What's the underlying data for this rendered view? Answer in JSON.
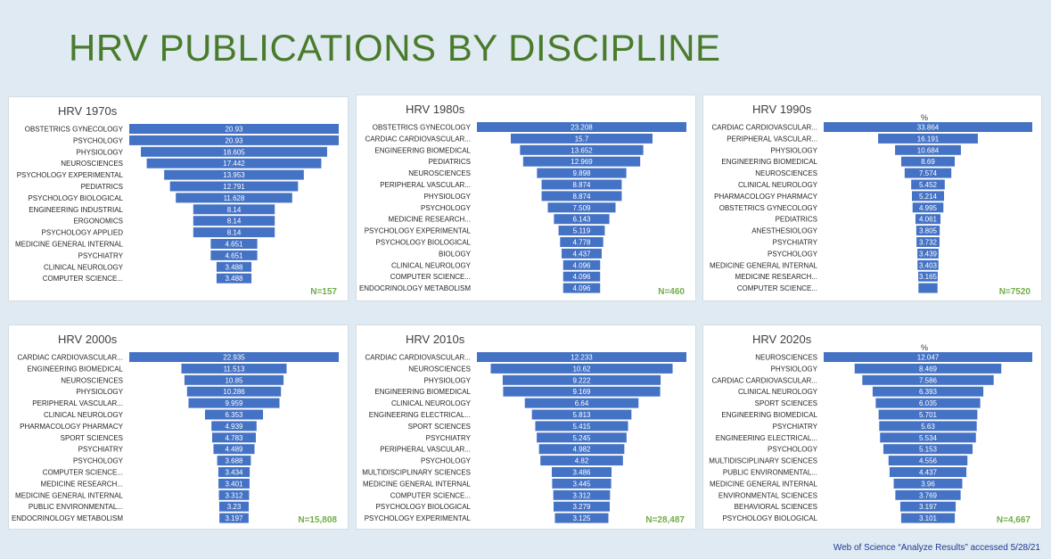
{
  "page": {
    "title": "HRV PUBLICATIONS BY DISCIPLINE",
    "source": "Web of Science “Analyze Results” accessed 5/28/21"
  },
  "colors": {
    "bar": "#4472c4",
    "title": "#4a7b2c",
    "n_label": "#70ad47",
    "background": "#dfeaf2"
  },
  "chart_data": [
    {
      "type": "bar",
      "orientation": "horizontal-funnel",
      "title": "HRV 1970s",
      "unit": "",
      "n_label": "N=157",
      "categories": [
        "OBSTETRICS GYNECOLOGY",
        "PSYCHOLOGY",
        "PHYSIOLOGY",
        "NEUROSCIENCES",
        "PSYCHOLOGY EXPERIMENTAL",
        "PEDIATRICS",
        "PSYCHOLOGY BIOLOGICAL",
        "ENGINEERING INDUSTRIAL",
        "ERGONOMICS",
        "PSYCHOLOGY APPLIED",
        "MEDICINE GENERAL INTERNAL",
        "PSYCHIATRY",
        "CLINICAL NEUROLOGY",
        "COMPUTER SCIENCE..."
      ],
      "values": [
        20.93,
        20.93,
        18.605,
        17.442,
        13.953,
        12.791,
        11.628,
        8.14,
        8.14,
        8.14,
        4.651,
        4.651,
        3.488,
        3.488
      ],
      "value_labels": [
        "20.93",
        "20.93",
        "18.605",
        "17.442",
        "13.953",
        "12.791",
        "11.628",
        "8.14",
        "8.14",
        "8.14",
        "4.651",
        "4.651",
        "3.488",
        "3.488"
      ]
    },
    {
      "type": "bar",
      "orientation": "horizontal-funnel",
      "title": "HRV 1980s",
      "unit": "",
      "n_label": "N=460",
      "categories": [
        "OBSTETRICS GYNECOLOGY",
        "CARDIAC CARDIOVASCULAR...",
        "ENGINEERING BIOMEDICAL",
        "PEDIATRICS",
        "NEUROSCIENCES",
        "PERIPHERAL VASCULAR...",
        "PHYSIOLOGY",
        "PSYCHOLOGY",
        "MEDICINE RESEARCH...",
        "PSYCHOLOGY EXPERIMENTAL",
        "PSYCHOLOGY BIOLOGICAL",
        "BIOLOGY",
        "CLINICAL NEUROLOGY",
        "COMPUTER SCIENCE...",
        "ENDOCRINOLOGY METABOLISM"
      ],
      "values": [
        23.208,
        15.7,
        13.652,
        12.969,
        9.898,
        8.874,
        8.874,
        7.509,
        6.143,
        5.119,
        4.778,
        4.437,
        4.096,
        4.096,
        4.096
      ],
      "value_labels": [
        "23.208",
        "15.7",
        "13.652",
        "12.969",
        "9.898",
        "8.874",
        "8.874",
        "7.509",
        "6.143",
        "5.119",
        "4.778",
        "4.437",
        "4.096",
        "4.096",
        "4.096"
      ]
    },
    {
      "type": "bar",
      "orientation": "horizontal-funnel",
      "title": "HRV 1990s",
      "unit": "%",
      "n_label": "N=7520",
      "categories": [
        "CARDIAC CARDIOVASCULAR...",
        "PERIPHERAL VASCULAR...",
        "PHYSIOLOGY",
        "ENGINEERING BIOMEDICAL",
        "NEUROSCIENCES",
        "CLINICAL NEUROLOGY",
        "PHARMACOLOGY PHARMACY",
        "OBSTETRICS GYNECOLOGY",
        "PEDIATRICS",
        "ANESTHESIOLOGY",
        "PSYCHIATRY",
        "PSYCHOLOGY",
        "MEDICINE GENERAL INTERNAL",
        "MEDICINE RESEARCH...",
        "COMPUTER SCIENCE..."
      ],
      "values": [
        33.864,
        16.191,
        10.684,
        8.69,
        7.574,
        5.452,
        5.214,
        4.995,
        4.061,
        3.805,
        3.732,
        3.439,
        3.403,
        3.165,
        3.1
      ],
      "value_labels": [
        "33.864",
        "16.191",
        "10.684",
        "8.69",
        "7.574",
        "5.452",
        "5.214",
        "4.995",
        "4.061",
        "3.805",
        "3.732",
        "3.439",
        "3.403",
        "3.165",
        ""
      ]
    },
    {
      "type": "bar",
      "orientation": "horizontal-funnel",
      "title": "HRV 2000s",
      "unit": "",
      "n_label": "N=15,808",
      "categories": [
        "CARDIAC CARDIOVASCULAR...",
        "ENGINEERING BIOMEDICAL",
        "NEUROSCIENCES",
        "PHYSIOLOGY",
        "PERIPHERAL VASCULAR...",
        "CLINICAL NEUROLOGY",
        "PHARMACOLOGY PHARMACY",
        "SPORT SCIENCES",
        "PSYCHIATRY",
        "PSYCHOLOGY",
        "COMPUTER SCIENCE...",
        "MEDICINE RESEARCH...",
        "MEDICINE GENERAL INTERNAL",
        "PUBLIC ENVIRONMENTAL...",
        "ENDOCRINOLOGY METABOLISM"
      ],
      "values": [
        22.935,
        11.513,
        10.85,
        10.286,
        9.959,
        6.353,
        4.939,
        4.783,
        4.489,
        3.688,
        3.434,
        3.401,
        3.312,
        3.23,
        3.197
      ],
      "value_labels": [
        "22.935",
        "11.513",
        "10.85",
        "10.286",
        "9.959",
        "6.353",
        "4.939",
        "4.783",
        "4.489",
        "3.688",
        "3.434",
        "3.401",
        "3.312",
        "3.23",
        "3.197"
      ]
    },
    {
      "type": "bar",
      "orientation": "horizontal-funnel",
      "title": "HRV 2010s",
      "unit": "",
      "n_label": "N=28,487",
      "categories": [
        "CARDIAC CARDIOVASCULAR...",
        "NEUROSCIENCES",
        "PHYSIOLOGY",
        "ENGINEERING BIOMEDICAL",
        "CLINICAL NEUROLOGY",
        "ENGINEERING ELECTRICAL...",
        "SPORT SCIENCES",
        "PSYCHIATRY",
        "PERIPHERAL VASCULAR...",
        "PSYCHOLOGY",
        "MULTIDISCIPLINARY SCIENCES",
        "MEDICINE GENERAL INTERNAL",
        "COMPUTER SCIENCE...",
        "PSYCHOLOGY BIOLOGICAL",
        "PSYCHOLOGY EXPERIMENTAL"
      ],
      "values": [
        12.233,
        10.62,
        9.222,
        9.169,
        6.64,
        5.813,
        5.415,
        5.245,
        4.982,
        4.82,
        3.486,
        3.445,
        3.312,
        3.279,
        3.125
      ],
      "value_labels": [
        "12.233",
        "10.62",
        "9.222",
        "9.169",
        "6.64",
        "5.813",
        "5.415",
        "5.245",
        "4.982",
        "4.82",
        "3.486",
        "3.445",
        "3.312",
        "3.279",
        "3.125"
      ]
    },
    {
      "type": "bar",
      "orientation": "horizontal-funnel",
      "title": "HRV 2020s",
      "unit": "%",
      "n_label": "N=4,667",
      "categories": [
        "NEUROSCIENCES",
        "PHYSIOLOGY",
        "CARDIAC CARDIOVASCULAR...",
        "CLINICAL NEUROLOGY",
        "SPORT SCIENCES",
        "ENGINEERING BIOMEDICAL",
        "PSYCHIATRY",
        "ENGINEERING ELECTRICAL...",
        "PSYCHOLOGY",
        "MULTIDISCIPLINARY SCIENCES",
        "PUBLIC ENVIRONMENTAL...",
        "MEDICINE GENERAL INTERNAL",
        "ENVIRONMENTAL SCIENCES",
        "BEHAVIORAL SCIENCES",
        "PSYCHOLOGY BIOLOGICAL"
      ],
      "values": [
        12.047,
        8.469,
        7.586,
        6.393,
        6.035,
        5.701,
        5.63,
        5.534,
        5.153,
        4.556,
        4.437,
        3.96,
        3.769,
        3.197,
        3.101
      ],
      "value_labels": [
        "12.047",
        "8.469",
        "7.586",
        "6.393",
        "6.035",
        "5.701",
        "5.63",
        "5.534",
        "5.153",
        "4.556",
        "4.437",
        "3.96",
        "3.769",
        "3.197",
        "3.101"
      ]
    }
  ]
}
